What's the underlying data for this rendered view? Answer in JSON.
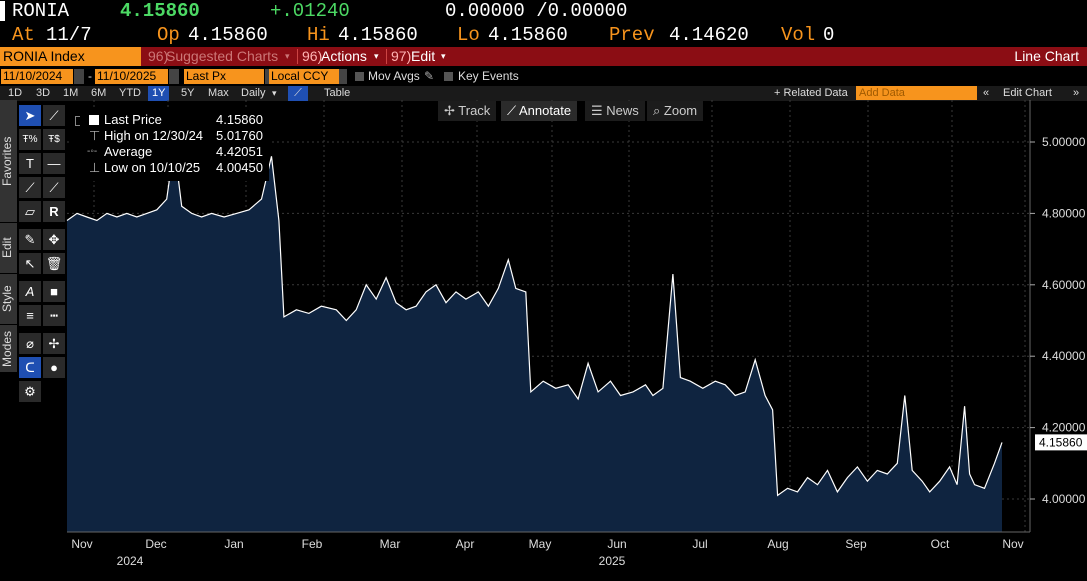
{
  "quote": {
    "ticker": "RONIA",
    "last": "4.15860",
    "change": "+.01240",
    "bid_ask": "0.00000 /0.00000",
    "at_label": "At",
    "at_value": "11/7",
    "op_label": "Op",
    "op_value": "4.15860",
    "hi_label": "Hi",
    "hi_value": "4.15860",
    "lo_label": "Lo",
    "lo_value": "4.15860",
    "prev_label": "Prev",
    "prev_value": "4.14620",
    "vol_label": "Vol",
    "vol_value": "0"
  },
  "function_bar": {
    "security": "RONIA Index",
    "suggested_charts": "Suggested Charts",
    "suggested_prefix": "96)",
    "actions_prefix": "96)",
    "actions": "Actions",
    "edit_prefix": "97)",
    "edit": "Edit",
    "chart_title": "Line Chart"
  },
  "date_row": {
    "start_date": "11/10/2024",
    "dash": "-",
    "end_date": "11/10/2025",
    "field": "Last Px",
    "currency": "Local CCY",
    "mov_avgs": "Mov Avgs",
    "key_events": "Key Events"
  },
  "period_row": {
    "periods": [
      "1D",
      "3D",
      "1M",
      "6M",
      "YTD",
      "1Y",
      "5Y",
      "Max"
    ],
    "selected": "1Y",
    "frequency": "Daily",
    "table": "Table",
    "related_data": "+ Related Data",
    "add_data_placeholder": "Add Data",
    "edit_chart": "Edit Chart"
  },
  "side_tabs": [
    "Favorites",
    "Edit",
    "Style",
    "Modes"
  ],
  "chart_toolbar": {
    "track": "Track",
    "annotate": "Annotate",
    "news": "News",
    "zoom": "Zoom"
  },
  "legend": {
    "last_label": "Last Price",
    "last_value": "4.15860",
    "high_label": "High on 12/30/24",
    "high_value": "5.01760",
    "avg_label": "Average",
    "avg_value": "4.42051",
    "low_label": "Low on 10/10/25",
    "low_value": "4.00450"
  },
  "colors": {
    "accent": "#f7941d",
    "function_bar": "#8b0d14",
    "selected": "#1f4fb2",
    "area_fill": "#0f2440",
    "positive": "#4cd964"
  },
  "chart_data": {
    "type": "area",
    "title": "",
    "xlabel": "",
    "ylabel": "",
    "ylim": [
      3.9,
      5.1
    ],
    "yticks": [
      "4.00000",
      "4.20000",
      "4.40000",
      "4.60000",
      "4.80000",
      "5.00000"
    ],
    "ytick_values": [
      4.0,
      4.2,
      4.4,
      4.6,
      4.8,
      5.0
    ],
    "xticks": [
      "Nov",
      "Dec",
      "Jan",
      "Feb",
      "Mar",
      "Apr",
      "May",
      "Jun",
      "Jul",
      "Aug",
      "Sep",
      "Oct",
      "Nov"
    ],
    "xtick_dates": [
      "2024-11-01",
      "2024-12-01",
      "2025-01-01",
      "2025-02-01",
      "2025-03-01",
      "2025-04-01",
      "2025-05-01",
      "2025-06-01",
      "2025-07-01",
      "2025-08-01",
      "2025-09-01",
      "2025-10-01",
      "2025-11-01"
    ],
    "year_labels": [
      {
        "label": "2024",
        "date": "2024-12-01"
      },
      {
        "label": "2025",
        "date": "2025-06-01"
      }
    ],
    "last_value_label": "4.15860",
    "series": [
      {
        "points": [
          [
            "2024-11-10",
            4.78
          ],
          [
            "2024-11-14",
            4.8
          ],
          [
            "2024-11-18",
            4.79
          ],
          [
            "2024-11-22",
            4.78
          ],
          [
            "2024-11-26",
            4.8
          ],
          [
            "2024-11-30",
            4.79
          ],
          [
            "2024-12-04",
            4.8
          ],
          [
            "2024-12-08",
            4.79
          ],
          [
            "2024-12-12",
            4.8
          ],
          [
            "2024-12-16",
            4.81
          ],
          [
            "2024-12-20",
            4.84
          ],
          [
            "2024-12-23",
            4.99
          ],
          [
            "2024-12-26",
            4.82
          ],
          [
            "2024-12-30",
            4.8
          ],
          [
            "2025-01-03",
            4.79
          ],
          [
            "2025-01-07",
            4.8
          ],
          [
            "2025-01-12",
            4.79
          ],
          [
            "2025-01-17",
            4.8
          ],
          [
            "2025-01-22",
            4.81
          ],
          [
            "2025-01-27",
            4.84
          ],
          [
            "2025-01-31",
            4.96
          ],
          [
            "2025-02-03",
            4.78
          ],
          [
            "2025-02-05",
            4.51
          ],
          [
            "2025-02-10",
            4.53
          ],
          [
            "2025-02-15",
            4.52
          ],
          [
            "2025-02-20",
            4.54
          ],
          [
            "2025-02-26",
            4.53
          ],
          [
            "2025-03-02",
            4.5
          ],
          [
            "2025-03-06",
            4.53
          ],
          [
            "2025-03-10",
            4.6
          ],
          [
            "2025-03-14",
            4.56
          ],
          [
            "2025-03-18",
            4.62
          ],
          [
            "2025-03-22",
            4.55
          ],
          [
            "2025-03-26",
            4.53
          ],
          [
            "2025-03-30",
            4.54
          ],
          [
            "2025-04-03",
            4.58
          ],
          [
            "2025-04-07",
            4.6
          ],
          [
            "2025-04-11",
            4.55
          ],
          [
            "2025-04-15",
            4.58
          ],
          [
            "2025-04-19",
            4.56
          ],
          [
            "2025-04-24",
            4.58
          ],
          [
            "2025-04-28",
            4.54
          ],
          [
            "2025-05-02",
            4.59
          ],
          [
            "2025-05-06",
            4.67
          ],
          [
            "2025-05-09",
            4.59
          ],
          [
            "2025-05-13",
            4.58
          ],
          [
            "2025-05-15",
            4.3
          ],
          [
            "2025-05-20",
            4.33
          ],
          [
            "2025-05-25",
            4.31
          ],
          [
            "2025-05-30",
            4.32
          ],
          [
            "2025-06-03",
            4.28
          ],
          [
            "2025-06-07",
            4.38
          ],
          [
            "2025-06-11",
            4.3
          ],
          [
            "2025-06-16",
            4.33
          ],
          [
            "2025-06-20",
            4.29
          ],
          [
            "2025-06-25",
            4.3
          ],
          [
            "2025-06-30",
            4.32
          ],
          [
            "2025-07-03",
            4.29
          ],
          [
            "2025-07-07",
            4.31
          ],
          [
            "2025-07-11",
            4.63
          ],
          [
            "2025-07-14",
            4.34
          ],
          [
            "2025-07-18",
            4.33
          ],
          [
            "2025-07-23",
            4.31
          ],
          [
            "2025-07-28",
            4.33
          ],
          [
            "2025-08-01",
            4.32
          ],
          [
            "2025-08-05",
            4.29
          ],
          [
            "2025-08-09",
            4.3
          ],
          [
            "2025-08-13",
            4.39
          ],
          [
            "2025-08-17",
            4.29
          ],
          [
            "2025-08-20",
            4.25
          ],
          [
            "2025-08-22",
            4.01
          ],
          [
            "2025-08-26",
            4.03
          ],
          [
            "2025-08-30",
            4.02
          ],
          [
            "2025-09-03",
            4.06
          ],
          [
            "2025-09-07",
            4.04
          ],
          [
            "2025-09-11",
            4.08
          ],
          [
            "2025-09-15",
            4.02
          ],
          [
            "2025-09-19",
            4.06
          ],
          [
            "2025-09-23",
            4.09
          ],
          [
            "2025-09-27",
            4.05
          ],
          [
            "2025-10-01",
            4.08
          ],
          [
            "2025-10-05",
            4.07
          ],
          [
            "2025-10-09",
            4.1
          ],
          [
            "2025-10-12",
            4.29
          ],
          [
            "2025-10-15",
            4.08
          ],
          [
            "2025-10-19",
            4.05
          ],
          [
            "2025-10-22",
            4.02
          ],
          [
            "2025-10-26",
            4.05
          ],
          [
            "2025-10-30",
            4.09
          ],
          [
            "2025-11-02",
            4.04
          ],
          [
            "2025-11-05",
            4.26
          ],
          [
            "2025-11-07",
            4.07
          ],
          [
            "2025-11-09",
            4.04
          ],
          [
            "2025-11-13",
            4.03
          ],
          [
            "2025-11-17",
            4.1
          ],
          [
            "2025-11-20",
            4.1586
          ]
        ]
      }
    ]
  }
}
